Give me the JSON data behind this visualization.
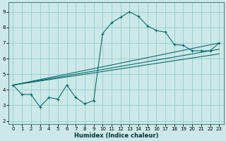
{
  "xlabel": "Humidex (Indice chaleur)",
  "bg_color": "#cce8e8",
  "grid_color": "#99cccc",
  "line_color": "#006666",
  "xlim": [
    -0.5,
    23.5
  ],
  "ylim": [
    1.8,
    9.6
  ],
  "xticks": [
    0,
    1,
    2,
    3,
    4,
    5,
    6,
    7,
    8,
    9,
    10,
    11,
    12,
    13,
    14,
    15,
    16,
    17,
    18,
    19,
    20,
    21,
    22,
    23
  ],
  "yticks": [
    2,
    3,
    4,
    5,
    6,
    7,
    8,
    9
  ],
  "data_x": [
    0,
    1,
    2,
    3,
    4,
    5,
    6,
    7,
    8,
    9,
    10,
    11,
    12,
    13,
    14,
    15,
    16,
    17,
    18,
    19,
    20,
    21,
    22,
    23
  ],
  "data_y": [
    4.3,
    3.7,
    3.7,
    2.9,
    3.5,
    3.4,
    4.3,
    3.5,
    3.1,
    3.3,
    7.6,
    8.3,
    8.65,
    9.0,
    8.7,
    8.1,
    7.8,
    7.7,
    6.9,
    6.85,
    6.5,
    6.5,
    6.5,
    7.0
  ],
  "straight_lines": [
    {
      "x": [
        0,
        23
      ],
      "y": [
        4.3,
        7.0
      ]
    },
    {
      "x": [
        0,
        23
      ],
      "y": [
        4.3,
        6.6
      ]
    },
    {
      "x": [
        0,
        23
      ],
      "y": [
        4.3,
        6.3
      ]
    }
  ]
}
